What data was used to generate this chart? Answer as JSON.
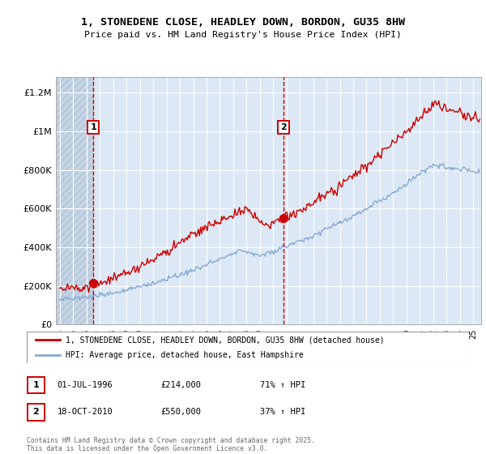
{
  "title_line1": "1, STONEDENE CLOSE, HEADLEY DOWN, BORDON, GU35 8HW",
  "title_line2": "Price paid vs. HM Land Registry's House Price Index (HPI)",
  "ylabel_ticks": [
    "£0",
    "£200K",
    "£400K",
    "£600K",
    "£800K",
    "£1M",
    "£1.2M"
  ],
  "ytick_vals": [
    0,
    200000,
    400000,
    600000,
    800000,
    1000000,
    1200000
  ],
  "ylim": [
    0,
    1280000
  ],
  "xlim_start": 1993.7,
  "xlim_end": 2025.6,
  "sale1_year": 1996.5,
  "sale1_price": 214000,
  "sale2_year": 2010.8,
  "sale2_price": 550000,
  "sale1_date": "01-JUL-1996",
  "sale1_amount": "£214,000",
  "sale1_hpi": "71% ↑ HPI",
  "sale2_date": "18-OCT-2010",
  "sale2_amount": "£550,000",
  "sale2_hpi": "37% ↑ HPI",
  "red_color": "#cc0000",
  "blue_color": "#88aad4",
  "legend_label_red": "1, STONEDENE CLOSE, HEADLEY DOWN, BORDON, GU35 8HW (detached house)",
  "legend_label_blue": "HPI: Average price, detached house, East Hampshire",
  "footer": "Contains HM Land Registry data © Crown copyright and database right 2025.\nThis data is licensed under the Open Government Licence v3.0.",
  "bg_color": "#dce8f5",
  "hatch_color": "#c4d4e4"
}
